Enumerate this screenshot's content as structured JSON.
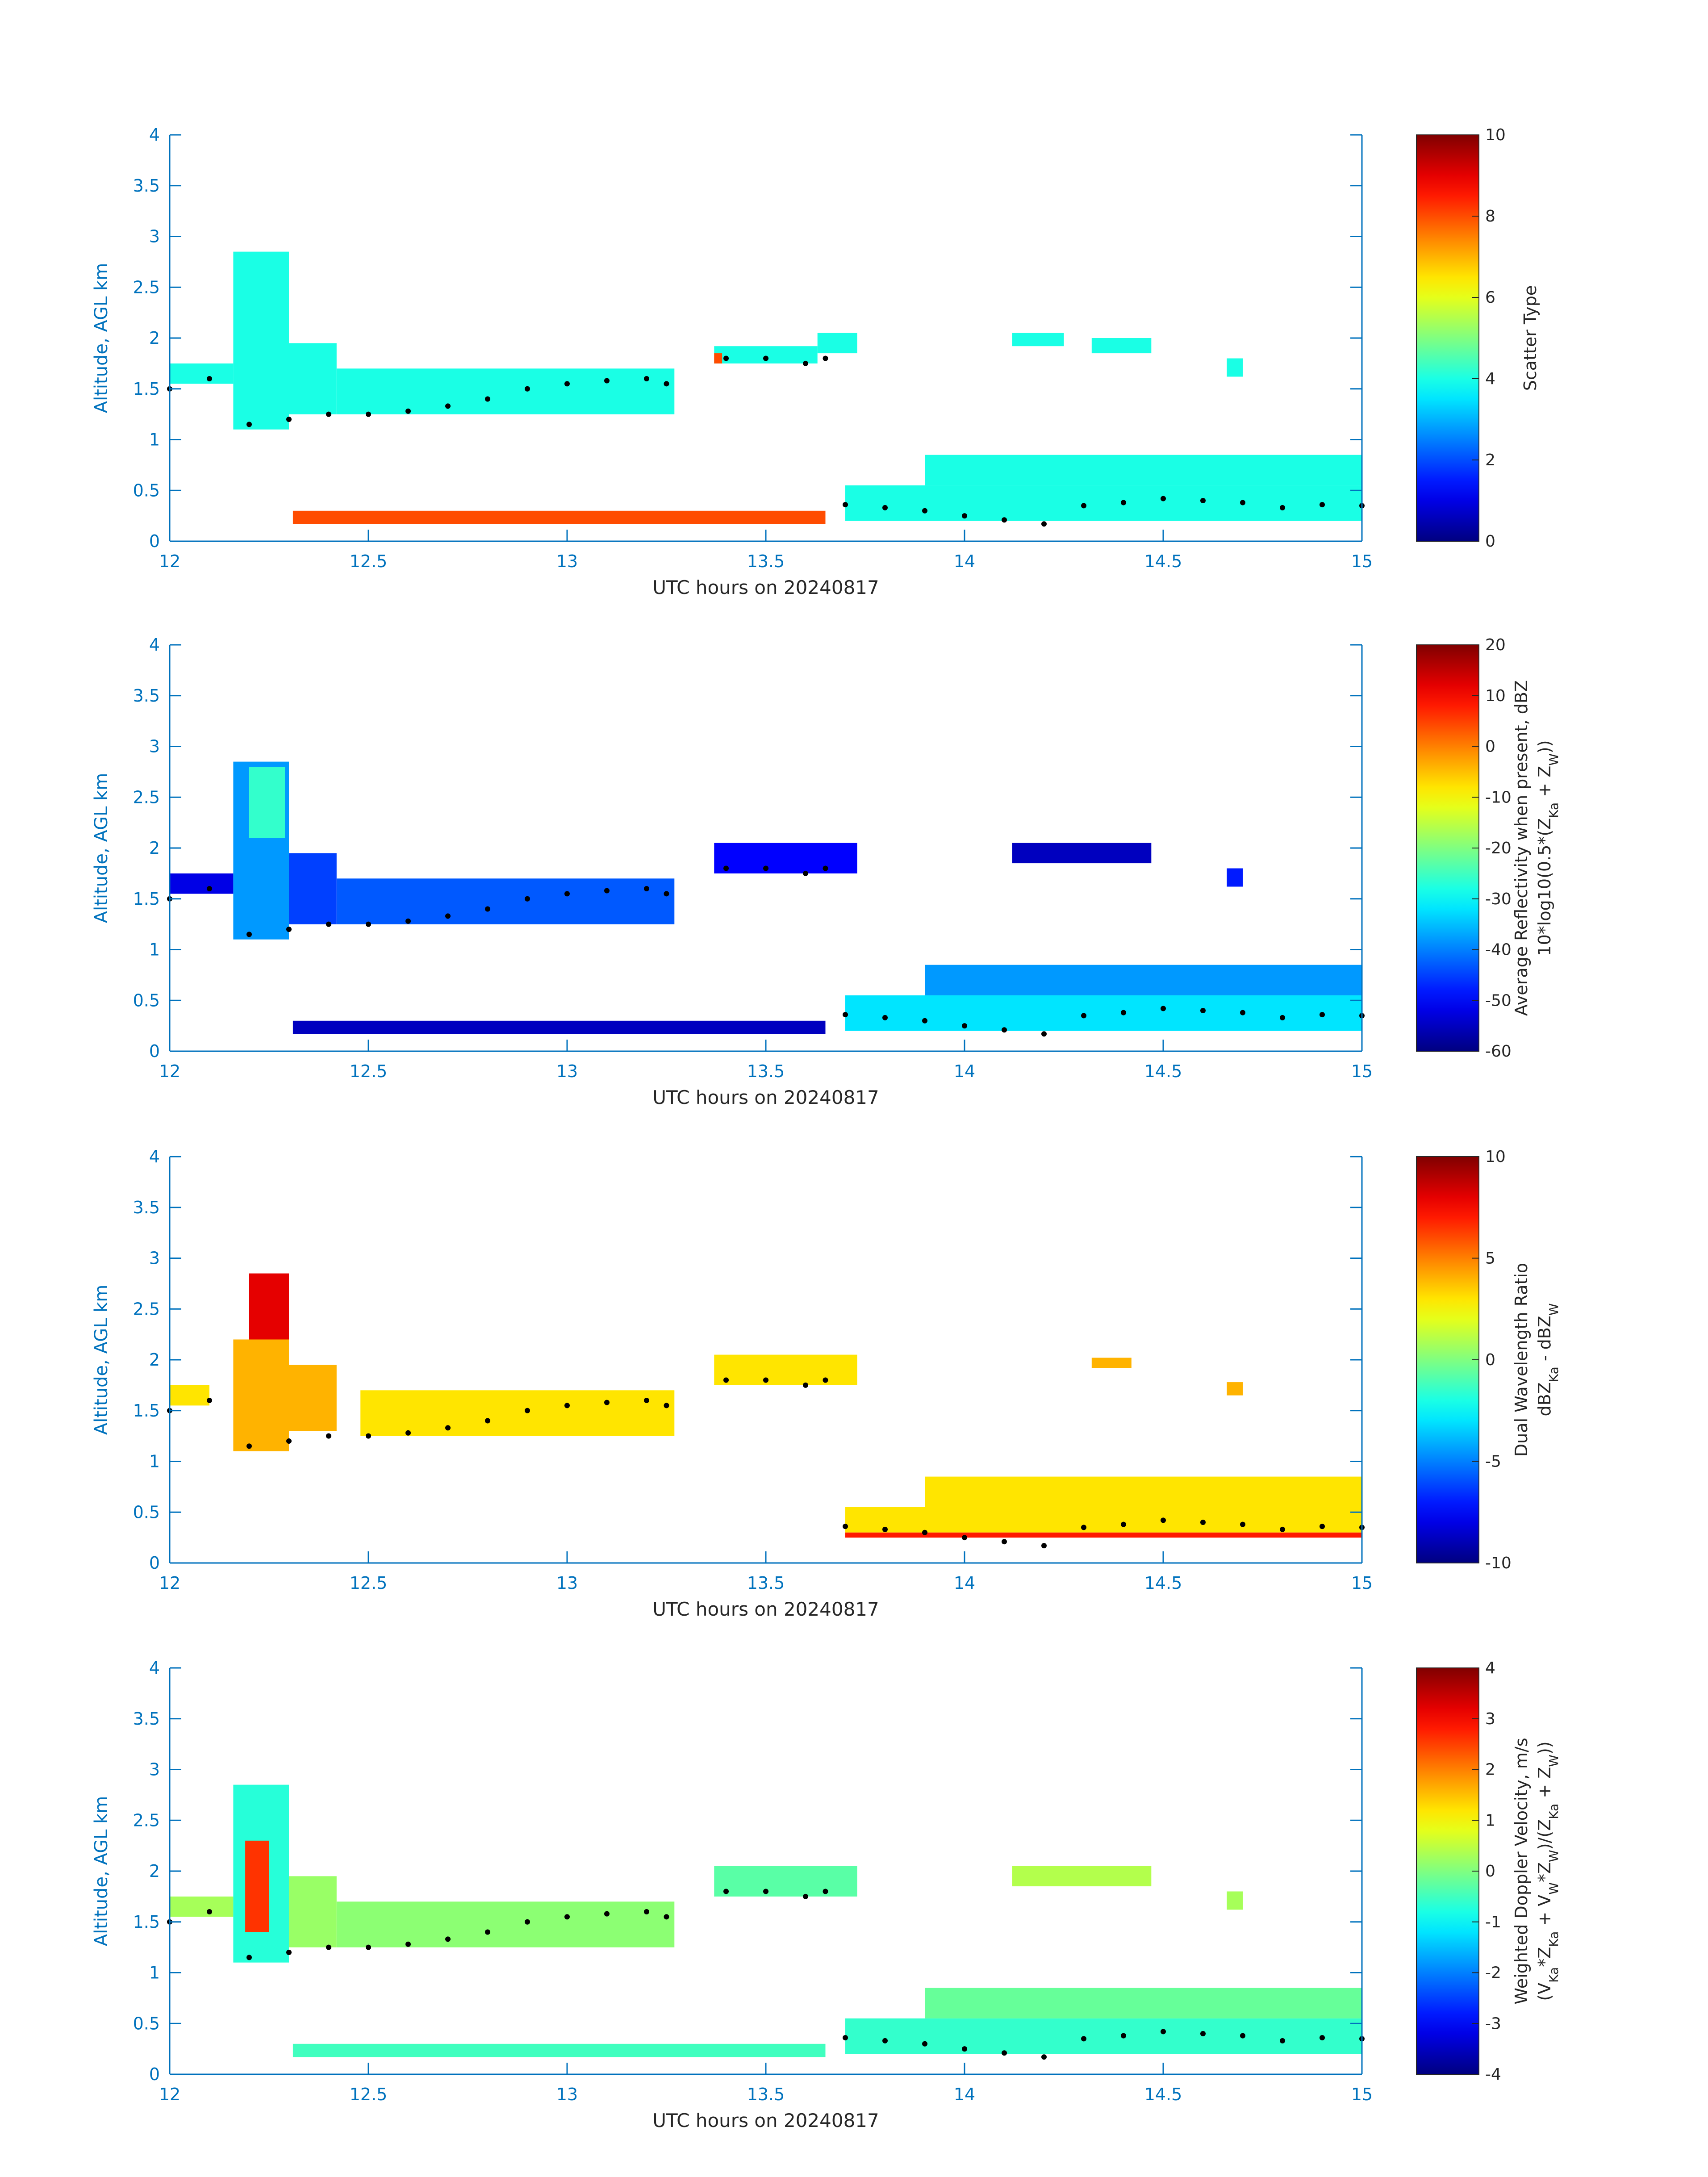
{
  "figure": {
    "date_label": "UTC hours on 20240817",
    "colors": {
      "axes": "#0072bd",
      "text": "#262626",
      "marker": "#000000"
    }
  },
  "chart_data": [
    {
      "type": "heatmap",
      "id": "scatter-type",
      "xlim": [
        12,
        15
      ],
      "ylim": [
        0,
        4
      ],
      "xticks": [
        "12",
        "12.5",
        "13",
        "13.5",
        "14",
        "14.5",
        "15"
      ],
      "yticks": [
        "0",
        "0.5",
        "1",
        "1.5",
        "2",
        "2.5",
        "3",
        "3.5",
        "4"
      ],
      "xlabel": "UTC hours on 20240817",
      "ylabel": "Altitude, AGL km",
      "colorbar": {
        "range": [
          0,
          10
        ],
        "ticks": [
          "0",
          "2",
          "4",
          "6",
          "8",
          "10"
        ],
        "label_lines": [
          "Scatter Type"
        ]
      },
      "regions": [
        {
          "x": [
            12.0,
            12.16
          ],
          "y": [
            1.55,
            1.75
          ],
          "value": 4
        },
        {
          "x": [
            12.16,
            12.3
          ],
          "y": [
            1.1,
            2.85
          ],
          "value": 4
        },
        {
          "x": [
            12.3,
            12.42
          ],
          "y": [
            1.25,
            1.95
          ],
          "value": 4
        },
        {
          "x": [
            12.42,
            13.27
          ],
          "y": [
            1.25,
            1.7
          ],
          "value": 4
        },
        {
          "x": [
            13.37,
            13.63
          ],
          "y": [
            1.75,
            1.92
          ],
          "value": 4
        },
        {
          "x": [
            13.63,
            13.73
          ],
          "y": [
            1.85,
            2.05
          ],
          "value": 4
        },
        {
          "x": [
            14.12,
            14.25
          ],
          "y": [
            1.92,
            2.05
          ],
          "value": 4
        },
        {
          "x": [
            14.32,
            14.47
          ],
          "y": [
            1.85,
            2.0
          ],
          "value": 4
        },
        {
          "x": [
            14.66,
            14.7
          ],
          "y": [
            1.62,
            1.8
          ],
          "value": 4
        },
        {
          "x": [
            13.7,
            15.0
          ],
          "y": [
            0.2,
            0.55
          ],
          "value": 4
        },
        {
          "x": [
            13.9,
            15.0
          ],
          "y": [
            0.55,
            0.85
          ],
          "value": 4
        },
        {
          "x": [
            12.31,
            13.65
          ],
          "y": [
            0.17,
            0.3
          ],
          "value": 8
        },
        {
          "x": [
            13.37,
            13.39
          ],
          "y": [
            1.75,
            1.85
          ],
          "value": 8
        }
      ],
      "marker_series": {
        "name": "detected base",
        "x": [
          12.0,
          12.1,
          12.2,
          12.3,
          12.4,
          12.5,
          12.6,
          12.7,
          12.8,
          12.9,
          13.0,
          13.1,
          13.2,
          13.25,
          13.4,
          13.5,
          13.6,
          13.65,
          13.7,
          13.8,
          13.9,
          14.0,
          14.1,
          14.2,
          14.3,
          14.4,
          14.5,
          14.6,
          14.7,
          14.8,
          14.9,
          15.0
        ],
        "y": [
          1.5,
          1.6,
          1.15,
          1.2,
          1.25,
          1.25,
          1.28,
          1.33,
          1.4,
          1.5,
          1.55,
          1.58,
          1.6,
          1.55,
          1.8,
          1.8,
          1.75,
          1.8,
          0.36,
          0.33,
          0.3,
          0.25,
          0.21,
          0.17,
          0.35,
          0.38,
          0.42,
          0.4,
          0.38,
          0.33,
          0.36,
          0.35
        ]
      }
    },
    {
      "type": "heatmap",
      "id": "average-reflectivity",
      "xlim": [
        12,
        15
      ],
      "ylim": [
        0,
        4
      ],
      "xticks": [
        "12",
        "12.5",
        "13",
        "13.5",
        "14",
        "14.5",
        "15"
      ],
      "yticks": [
        "0",
        "0.5",
        "1",
        "1.5",
        "2",
        "2.5",
        "3",
        "3.5",
        "4"
      ],
      "xlabel": "UTC hours on 20240817",
      "ylabel": "Altitude, AGL km",
      "colorbar": {
        "range": [
          -60,
          20
        ],
        "ticks": [
          "-60",
          "-50",
          "-40",
          "-30",
          "-20",
          "-10",
          "0",
          "10",
          "20"
        ],
        "label_lines": [
          "Average Reflectivity when present, dBZ",
          "10*log10(0.5*(Z",
          "Ka",
          " + Z",
          "W",
          "))"
        ]
      },
      "regions": [
        {
          "x": [
            12.0,
            12.16
          ],
          "y": [
            1.55,
            1.75
          ],
          "value": -52
        },
        {
          "x": [
            12.16,
            12.3
          ],
          "y": [
            1.1,
            2.85
          ],
          "value": -38
        },
        {
          "x": [
            12.2,
            12.29
          ],
          "y": [
            2.1,
            2.8
          ],
          "value": -26
        },
        {
          "x": [
            12.3,
            12.42
          ],
          "y": [
            1.25,
            1.95
          ],
          "value": -45
        },
        {
          "x": [
            12.42,
            13.27
          ],
          "y": [
            1.25,
            1.7
          ],
          "value": -43
        },
        {
          "x": [
            13.37,
            13.73
          ],
          "y": [
            1.75,
            2.05
          ],
          "value": -50
        },
        {
          "x": [
            14.12,
            14.47
          ],
          "y": [
            1.85,
            2.05
          ],
          "value": -55
        },
        {
          "x": [
            14.66,
            14.7
          ],
          "y": [
            1.62,
            1.8
          ],
          "value": -48
        },
        {
          "x": [
            13.7,
            15.0
          ],
          "y": [
            0.2,
            0.55
          ],
          "value": -32
        },
        {
          "x": [
            13.9,
            15.0
          ],
          "y": [
            0.55,
            0.85
          ],
          "value": -38
        },
        {
          "x": [
            12.31,
            13.65
          ],
          "y": [
            0.17,
            0.3
          ],
          "value": -55
        }
      ],
      "marker_series": {
        "name": "detected base",
        "x": [
          12.0,
          12.1,
          12.2,
          12.3,
          12.4,
          12.5,
          12.6,
          12.7,
          12.8,
          12.9,
          13.0,
          13.1,
          13.2,
          13.25,
          13.4,
          13.5,
          13.6,
          13.65,
          13.7,
          13.8,
          13.9,
          14.0,
          14.1,
          14.2,
          14.3,
          14.4,
          14.5,
          14.6,
          14.7,
          14.8,
          14.9,
          15.0
        ],
        "y": [
          1.5,
          1.6,
          1.15,
          1.2,
          1.25,
          1.25,
          1.28,
          1.33,
          1.4,
          1.5,
          1.55,
          1.58,
          1.6,
          1.55,
          1.8,
          1.8,
          1.75,
          1.8,
          0.36,
          0.33,
          0.3,
          0.25,
          0.21,
          0.17,
          0.35,
          0.38,
          0.42,
          0.4,
          0.38,
          0.33,
          0.36,
          0.35
        ]
      }
    },
    {
      "type": "heatmap",
      "id": "dual-wavelength-ratio",
      "xlim": [
        12,
        15
      ],
      "ylim": [
        0,
        4
      ],
      "xticks": [
        "12",
        "12.5",
        "13",
        "13.5",
        "14",
        "14.5",
        "15"
      ],
      "yticks": [
        "0",
        "0.5",
        "1",
        "1.5",
        "2",
        "2.5",
        "3",
        "3.5",
        "4"
      ],
      "xlabel": "UTC hours on 20240817",
      "ylabel": "Altitude, AGL km",
      "colorbar": {
        "range": [
          -10,
          10
        ],
        "ticks": [
          "-10",
          "-5",
          "0",
          "5",
          "10"
        ],
        "label_lines": [
          "Dual Wavelength Ratio",
          "dBZ",
          "Ka",
          " - dBZ",
          "W"
        ]
      },
      "regions": [
        {
          "x": [
            12.0,
            12.1
          ],
          "y": [
            1.55,
            1.75
          ],
          "value": 3
        },
        {
          "x": [
            12.16,
            12.3
          ],
          "y": [
            1.1,
            2.2
          ],
          "value": 4
        },
        {
          "x": [
            12.2,
            12.3
          ],
          "y": [
            2.2,
            2.85
          ],
          "value": 8
        },
        {
          "x": [
            12.3,
            12.42
          ],
          "y": [
            1.3,
            1.95
          ],
          "value": 4
        },
        {
          "x": [
            12.48,
            13.27
          ],
          "y": [
            1.25,
            1.7
          ],
          "value": 3
        },
        {
          "x": [
            13.37,
            13.73
          ],
          "y": [
            1.75,
            2.05
          ],
          "value": 3
        },
        {
          "x": [
            14.32,
            14.42
          ],
          "y": [
            1.92,
            2.02
          ],
          "value": 4
        },
        {
          "x": [
            14.66,
            14.7
          ],
          "y": [
            1.65,
            1.78
          ],
          "value": 4
        },
        {
          "x": [
            13.7,
            15.0
          ],
          "y": [
            0.3,
            0.55
          ],
          "value": 3
        },
        {
          "x": [
            13.9,
            15.0
          ],
          "y": [
            0.55,
            0.85
          ],
          "value": 3
        },
        {
          "x": [
            13.7,
            15.0
          ],
          "y": [
            0.25,
            0.3
          ],
          "value": 7
        }
      ],
      "marker_series": {
        "name": "detected base",
        "x": [
          12.0,
          12.1,
          12.2,
          12.3,
          12.4,
          12.5,
          12.6,
          12.7,
          12.8,
          12.9,
          13.0,
          13.1,
          13.2,
          13.25,
          13.4,
          13.5,
          13.6,
          13.65,
          13.7,
          13.8,
          13.9,
          14.0,
          14.1,
          14.2,
          14.3,
          14.4,
          14.5,
          14.6,
          14.7,
          14.8,
          14.9,
          15.0
        ],
        "y": [
          1.5,
          1.6,
          1.15,
          1.2,
          1.25,
          1.25,
          1.28,
          1.33,
          1.4,
          1.5,
          1.55,
          1.58,
          1.6,
          1.55,
          1.8,
          1.8,
          1.75,
          1.8,
          0.36,
          0.33,
          0.3,
          0.25,
          0.21,
          0.17,
          0.35,
          0.38,
          0.42,
          0.4,
          0.38,
          0.33,
          0.36,
          0.35
        ]
      }
    },
    {
      "type": "heatmap",
      "id": "weighted-doppler-velocity",
      "xlim": [
        12,
        15
      ],
      "ylim": [
        0,
        4
      ],
      "xticks": [
        "12",
        "12.5",
        "13",
        "13.5",
        "14",
        "14.5",
        "15"
      ],
      "yticks": [
        "0",
        "0.5",
        "1",
        "1.5",
        "2",
        "2.5",
        "3",
        "3.5",
        "4"
      ],
      "xlabel": "UTC hours on 20240817",
      "ylabel": "Altitude, AGL km",
      "colorbar": {
        "range": [
          -4,
          4
        ],
        "ticks": [
          "-4",
          "-3",
          "-2",
          "-1",
          "0",
          "1",
          "2",
          "3",
          "4"
        ],
        "label_lines": [
          "Weighted Doppler Velocity, m/s",
          "(V",
          "Ka",
          "*Z",
          "Ka",
          " + V",
          "W",
          "*Z",
          "W",
          ")/(Z",
          "Ka",
          " + Z",
          "W",
          "))"
        ]
      },
      "regions": [
        {
          "x": [
            12.0,
            12.16
          ],
          "y": [
            1.55,
            1.75
          ],
          "value": 0.3
        },
        {
          "x": [
            12.16,
            12.3
          ],
          "y": [
            1.1,
            2.85
          ],
          "value": -0.7
        },
        {
          "x": [
            12.19,
            12.25
          ],
          "y": [
            1.4,
            2.3
          ],
          "value": 2.6
        },
        {
          "x": [
            12.3,
            12.42
          ],
          "y": [
            1.25,
            1.95
          ],
          "value": 0.2
        },
        {
          "x": [
            12.42,
            13.27
          ],
          "y": [
            1.25,
            1.7
          ],
          "value": 0.1
        },
        {
          "x": [
            13.37,
            13.73
          ],
          "y": [
            1.75,
            2.05
          ],
          "value": -0.3
        },
        {
          "x": [
            14.12,
            14.47
          ],
          "y": [
            1.85,
            2.05
          ],
          "value": 0.4
        },
        {
          "x": [
            14.66,
            14.7
          ],
          "y": [
            1.62,
            1.8
          ],
          "value": 0.3
        },
        {
          "x": [
            13.7,
            15.0
          ],
          "y": [
            0.2,
            0.55
          ],
          "value": -0.6
        },
        {
          "x": [
            13.9,
            15.0
          ],
          "y": [
            0.55,
            0.85
          ],
          "value": -0.2
        },
        {
          "x": [
            12.31,
            13.65
          ],
          "y": [
            0.17,
            0.3
          ],
          "value": -0.5
        }
      ],
      "marker_series": {
        "name": "detected base",
        "x": [
          12.0,
          12.1,
          12.2,
          12.3,
          12.4,
          12.5,
          12.6,
          12.7,
          12.8,
          12.9,
          13.0,
          13.1,
          13.2,
          13.25,
          13.4,
          13.5,
          13.6,
          13.65,
          13.7,
          13.8,
          13.9,
          14.0,
          14.1,
          14.2,
          14.3,
          14.4,
          14.5,
          14.6,
          14.7,
          14.8,
          14.9,
          15.0
        ],
        "y": [
          1.5,
          1.6,
          1.15,
          1.2,
          1.25,
          1.25,
          1.28,
          1.33,
          1.4,
          1.5,
          1.55,
          1.58,
          1.6,
          1.55,
          1.8,
          1.8,
          1.75,
          1.8,
          0.36,
          0.33,
          0.3,
          0.25,
          0.21,
          0.17,
          0.35,
          0.38,
          0.42,
          0.4,
          0.38,
          0.33,
          0.36,
          0.35
        ]
      }
    }
  ]
}
